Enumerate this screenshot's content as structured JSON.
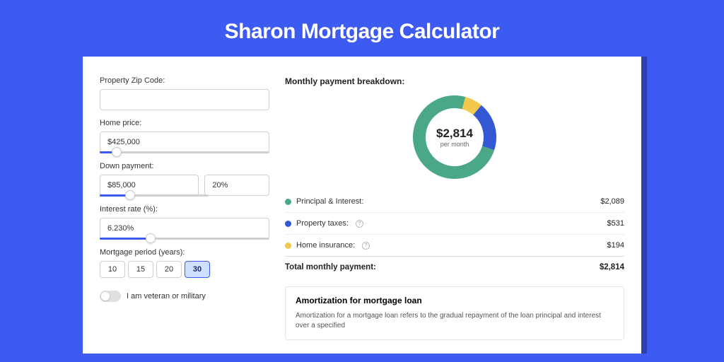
{
  "page": {
    "title": "Sharon Mortgage Calculator",
    "background_color": "#3d5af1",
    "card_background": "#ffffff"
  },
  "form": {
    "zip": {
      "label": "Property Zip Code:",
      "value": ""
    },
    "home_price": {
      "label": "Home price:",
      "value": "$425,000",
      "slider_pct": 10
    },
    "down_payment": {
      "label": "Down payment:",
      "value": "$85,000",
      "pct_value": "20%",
      "slider_pct": 28
    },
    "interest_rate": {
      "label": "Interest rate (%):",
      "value": "6.230%",
      "slider_pct": 30
    },
    "mortgage_period": {
      "label": "Mortgage period (years):",
      "options": [
        "10",
        "15",
        "20",
        "30"
      ],
      "selected": "30"
    },
    "veteran": {
      "label": "I am veteran or military",
      "checked": false
    }
  },
  "breakdown": {
    "title": "Monthly payment breakdown:",
    "donut": {
      "center_amount": "$2,814",
      "center_sub": "per month",
      "segments": [
        {
          "name": "principal_interest",
          "color": "#4aa887",
          "value": 2089,
          "pct": 74.2
        },
        {
          "name": "property_taxes",
          "color": "#3358d4",
          "value": 531,
          "pct": 18.9
        },
        {
          "name": "home_insurance",
          "color": "#f2c94c",
          "value": 194,
          "pct": 6.9
        }
      ],
      "stroke_width": 18,
      "radius": 50
    },
    "legend": [
      {
        "dot_color": "#4aa887",
        "label": "Principal & Interest:",
        "value": "$2,089",
        "help": false
      },
      {
        "dot_color": "#3358d4",
        "label": "Property taxes:",
        "value": "$531",
        "help": true
      },
      {
        "dot_color": "#f2c94c",
        "label": "Home insurance:",
        "value": "$194",
        "help": true
      }
    ],
    "total": {
      "label": "Total monthly payment:",
      "value": "$2,814"
    }
  },
  "amortization": {
    "title": "Amortization for mortgage loan",
    "text": "Amortization for a mortgage loan refers to the gradual repayment of the loan principal and interest over a specified"
  }
}
